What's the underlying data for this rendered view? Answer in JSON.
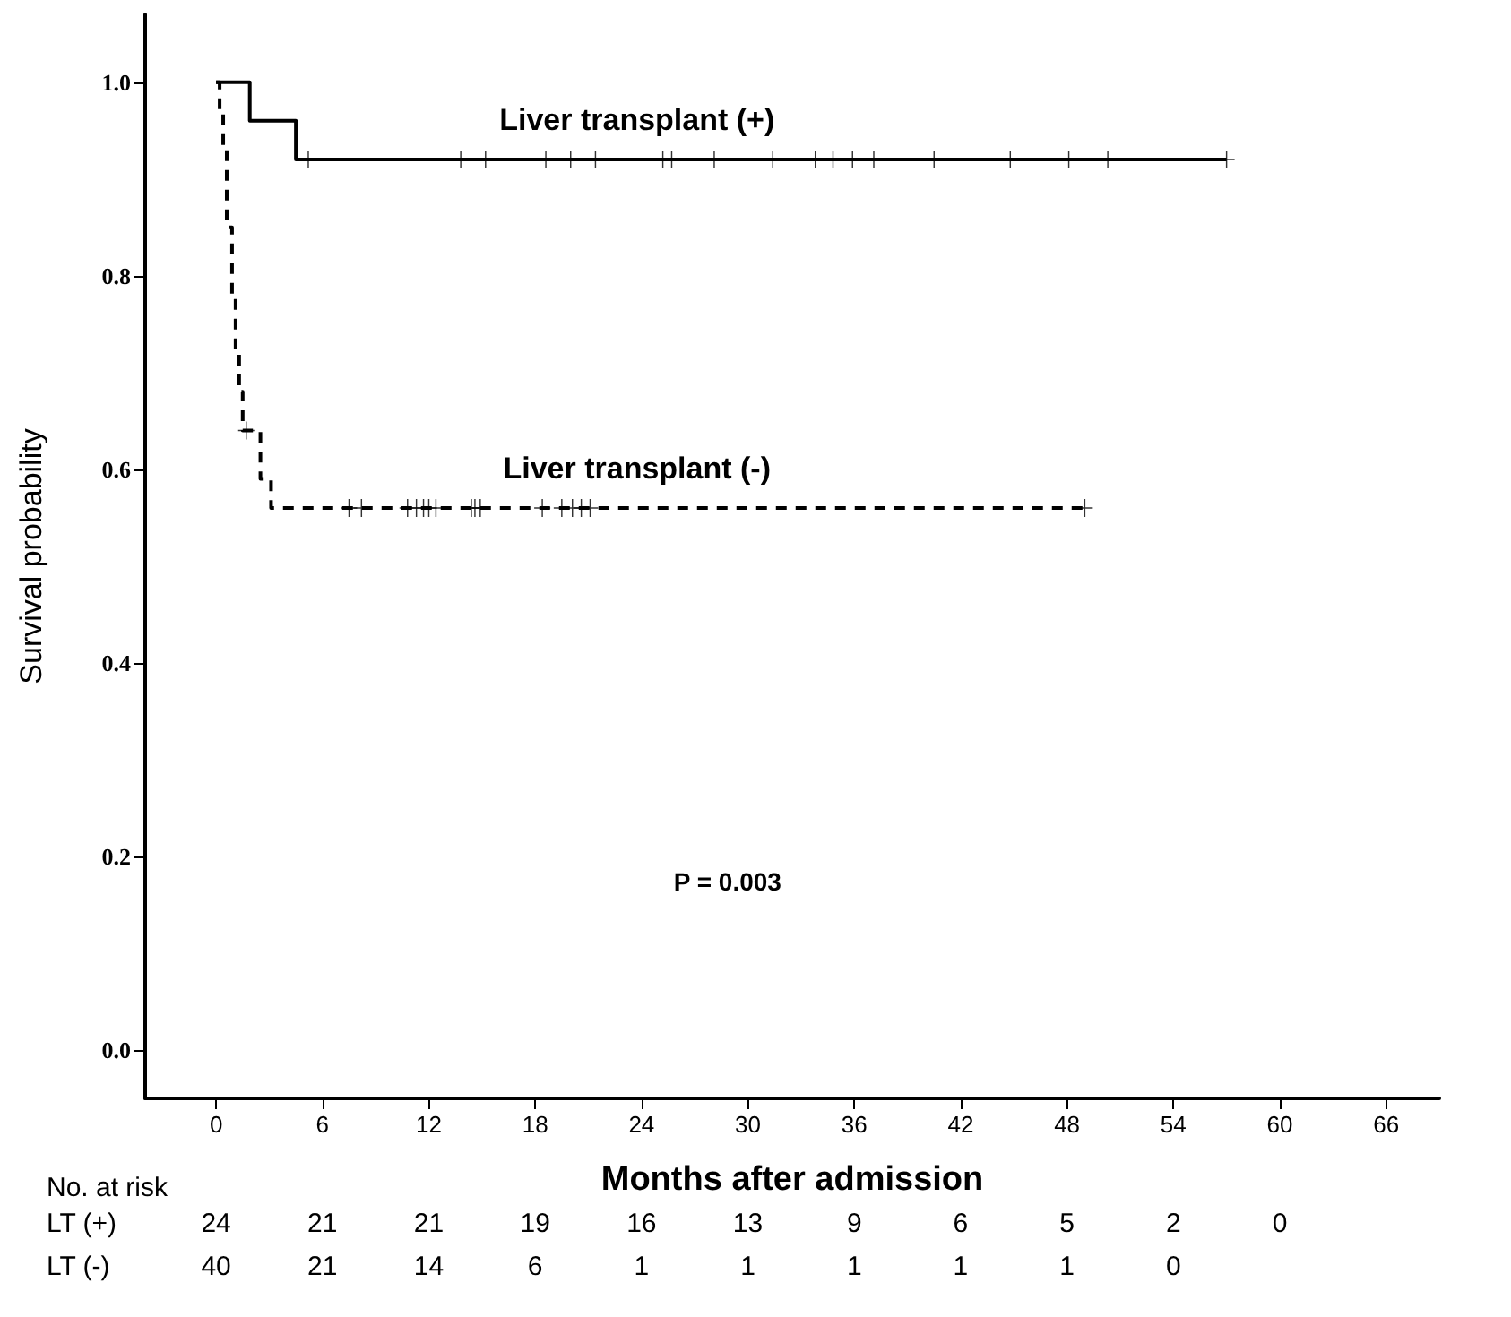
{
  "chart_data": {
    "type": "step",
    "xlabel": "Months after admission",
    "ylabel": "Survival probability",
    "xlim": [
      -4,
      69
    ],
    "xticks": [
      0,
      6,
      12,
      18,
      24,
      30,
      36,
      42,
      48,
      54,
      60,
      66
    ],
    "ylim": [
      -0.05,
      1.07
    ],
    "yticks": [
      {
        "value": 0,
        "label": "0.0"
      },
      {
        "value": 0.2,
        "label": "0.2"
      },
      {
        "value": 0.4,
        "label": "0.4"
      },
      {
        "value": 0.6,
        "label": "0.6"
      },
      {
        "value": 0.8,
        "label": "0.8"
      },
      {
        "value": 1,
        "label": "1.0"
      }
    ],
    "grid": false,
    "legend": false,
    "series": [
      {
        "name": "Liver transplant (+)",
        "color": "#000000",
        "line_style": "solid",
        "marker": "none",
        "x": [
          0,
          1.9,
          4.5,
          57
        ],
        "values": [
          1,
          0.96,
          0.92,
          0.92
        ]
      },
      {
        "type": "scatter",
        "color": "#000000",
        "marker": "cross",
        "x": [
          5.2,
          13.8,
          15.2,
          18.6,
          20,
          21.4,
          25.2,
          25.7,
          28.1,
          31.4,
          33.8,
          34.8,
          35.9,
          37.1,
          40.5,
          44.8,
          48.1,
          50.3,
          57
        ],
        "values": [
          0.92,
          0.92,
          0.92,
          0.92,
          0.92,
          0.92,
          0.92,
          0.92,
          0.92,
          0.92,
          0.92,
          0.92,
          0.92,
          0.92,
          0.92,
          0.92,
          0.92,
          0.92,
          0.92
        ]
      },
      {
        "name": "Liver transplant (-)",
        "color": "#000000",
        "line_style": "dashed",
        "marker": "none",
        "x": [
          0,
          0.2,
          0.4,
          0.6,
          0.9,
          1.1,
          1.3,
          1.5,
          2.5,
          3.1,
          49
        ],
        "values": [
          1,
          0.97,
          0.93,
          0.85,
          0.78,
          0.72,
          0.68,
          0.64,
          0.59,
          0.56,
          0.56
        ]
      },
      {
        "type": "scatter",
        "color": "#000000",
        "marker": "cross",
        "x": [
          1.7,
          7.5,
          8.2,
          10.8,
          11.3,
          11.7,
          12.0,
          12.4,
          14.4,
          14.6,
          14.9,
          18.4,
          19.5,
          20.1,
          20.6,
          21.1,
          49
        ],
        "values": [
          0.64,
          0.56,
          0.56,
          0.56,
          0.56,
          0.56,
          0.56,
          0.56,
          0.56,
          0.56,
          0.56,
          0.56,
          0.56,
          0.56,
          0.56,
          0.56,
          0.56
        ]
      }
    ],
    "annotations": [
      "P = 0.003",
      "No. at risk",
      "LT (+)",
      "LT (-)",
      "24 21 21 19 16 13 9 6 5 2 0",
      "40 21 14 6 1 1 1 1 1 0"
    ]
  }
}
